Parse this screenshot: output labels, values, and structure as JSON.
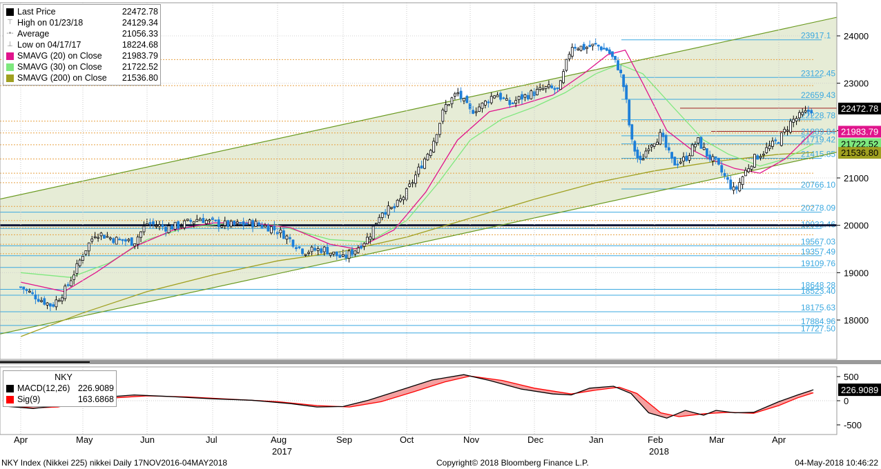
{
  "legend": {
    "items": [
      {
        "mark": "square",
        "color": "#000000",
        "label": "Last Price",
        "value": "22472.78"
      },
      {
        "mark": "glyph",
        "glyph": "⊤",
        "label": "High on 01/23/18",
        "value": "24129.34"
      },
      {
        "mark": "glyph",
        "glyph": "-•-",
        "label": "Average",
        "value": "21056.33"
      },
      {
        "mark": "glyph",
        "glyph": "⊥",
        "label": "Low on 04/17/17",
        "value": "18224.68"
      },
      {
        "mark": "square",
        "color": "#e0148c",
        "label": "SMAVG (20) on Close",
        "value": "21983.79"
      },
      {
        "mark": "square",
        "color": "#7ee87e",
        "label": "SMAVG (30) on Close",
        "value": "21722.52"
      },
      {
        "mark": "square",
        "color": "#a0a020",
        "label": "SMAVG (200) on Close",
        "value": "21536.80"
      }
    ]
  },
  "macd_legend": {
    "title": "NKY",
    "items": [
      {
        "color": "#000000",
        "label": "MACD(12,26)",
        "value": "226.9089"
      },
      {
        "color": "#ff0000",
        "label": "Sig(9)",
        "value": "163.6868"
      }
    ]
  },
  "footer": {
    "left": "NKY Index (Nikkei 225) nikkei  Daily 17NOV2016-04MAY2018",
    "center": "Copyright© 2018 Bloomberg Finance L.P.",
    "right": "04-May-2018 10:46:22"
  },
  "colors": {
    "price_up": "#000000",
    "price_down": "#1e7fd8",
    "sma20": "#e0148c",
    "sma30": "#7ee87e",
    "sma200": "#a0a020",
    "channel_fill": "#e6ecd6",
    "channel_line": "#6a9a20",
    "fib_line": "#3aa8e0",
    "orange_line": "#e8a040",
    "macd": "#000000",
    "signal": "#ff0000",
    "histogram_fill": "#f4a0a0"
  },
  "chart_data": [
    {
      "type": "candlestick",
      "title": "",
      "ylim": [
        17500,
        24400
      ],
      "y_ticks": [
        18000,
        19000,
        20000,
        21000,
        22000,
        23000,
        24000
      ],
      "x_labels": [
        "Apr",
        "May",
        "Jun",
        "Jul",
        "Aug",
        "Sep",
        "Oct",
        "Nov",
        "Dec",
        "Jan",
        "Feb",
        "Mar",
        "Apr"
      ],
      "year_labels": [
        {
          "text": "2017",
          "month_index": 4
        },
        {
          "text": "2018",
          "month_index": 10
        }
      ],
      "grid": true,
      "legend": "top-left",
      "close_series": [
        {
          "m": 0.0,
          "v": 18700
        },
        {
          "m": 0.3,
          "v": 18450
        },
        {
          "m": 0.5,
          "v": 18300
        },
        {
          "m": 0.7,
          "v": 18600
        },
        {
          "m": 0.9,
          "v": 19100
        },
        {
          "m": 1.0,
          "v": 19400
        },
        {
          "m": 1.2,
          "v": 19850
        },
        {
          "m": 1.5,
          "v": 19700
        },
        {
          "m": 1.8,
          "v": 19650
        },
        {
          "m": 2.0,
          "v": 20050
        },
        {
          "m": 2.3,
          "v": 19950
        },
        {
          "m": 2.5,
          "v": 20000
        },
        {
          "m": 2.8,
          "v": 20150
        },
        {
          "m": 3.0,
          "v": 20050
        },
        {
          "m": 3.3,
          "v": 20000
        },
        {
          "m": 3.6,
          "v": 20050
        },
        {
          "m": 3.9,
          "v": 19950
        },
        {
          "m": 4.1,
          "v": 19800
        },
        {
          "m": 4.4,
          "v": 19450
        },
        {
          "m": 4.7,
          "v": 19500
        },
        {
          "m": 5.0,
          "v": 19300
        },
        {
          "m": 5.2,
          "v": 19500
        },
        {
          "m": 5.4,
          "v": 19750
        },
        {
          "m": 5.6,
          "v": 20300
        },
        {
          "m": 5.8,
          "v": 20350
        },
        {
          "m": 6.0,
          "v": 20700
        },
        {
          "m": 6.2,
          "v": 21200
        },
        {
          "m": 6.4,
          "v": 21700
        },
        {
          "m": 6.6,
          "v": 22500
        },
        {
          "m": 6.8,
          "v": 22800
        },
        {
          "m": 7.0,
          "v": 22400
        },
        {
          "m": 7.2,
          "v": 22550
        },
        {
          "m": 7.4,
          "v": 22800
        },
        {
          "m": 7.6,
          "v": 22550
        },
        {
          "m": 7.8,
          "v": 22700
        },
        {
          "m": 8.0,
          "v": 22800
        },
        {
          "m": 8.2,
          "v": 22900
        },
        {
          "m": 8.4,
          "v": 22850
        },
        {
          "m": 8.6,
          "v": 23800
        },
        {
          "m": 8.8,
          "v": 23750
        },
        {
          "m": 9.0,
          "v": 23800
        },
        {
          "m": 9.2,
          "v": 23700
        },
        {
          "m": 9.4,
          "v": 23300
        },
        {
          "m": 9.5,
          "v": 22800
        },
        {
          "m": 9.6,
          "v": 21800
        },
        {
          "m": 9.75,
          "v": 21300
        },
        {
          "m": 9.9,
          "v": 21700
        },
        {
          "m": 10.1,
          "v": 21900
        },
        {
          "m": 10.3,
          "v": 21300
        },
        {
          "m": 10.5,
          "v": 21400
        },
        {
          "m": 10.7,
          "v": 21800
        },
        {
          "m": 10.85,
          "v": 21500
        },
        {
          "m": 11.0,
          "v": 21300
        },
        {
          "m": 11.15,
          "v": 21000
        },
        {
          "m": 11.3,
          "v": 20700
        },
        {
          "m": 11.45,
          "v": 21100
        },
        {
          "m": 11.6,
          "v": 21400
        },
        {
          "m": 11.8,
          "v": 21600
        },
        {
          "m": 12.0,
          "v": 21800
        },
        {
          "m": 12.2,
          "v": 22200
        },
        {
          "m": 12.4,
          "v": 22350
        },
        {
          "m": 12.55,
          "v": 22472.78
        }
      ],
      "sma20": [
        {
          "m": 0.0,
          "v": 18800
        },
        {
          "m": 0.7,
          "v": 18600
        },
        {
          "m": 1.2,
          "v": 19000
        },
        {
          "m": 1.8,
          "v": 19550
        },
        {
          "m": 2.4,
          "v": 19900
        },
        {
          "m": 3.0,
          "v": 20050
        },
        {
          "m": 3.6,
          "v": 20050
        },
        {
          "m": 4.2,
          "v": 19950
        },
        {
          "m": 4.8,
          "v": 19600
        },
        {
          "m": 5.2,
          "v": 19500
        },
        {
          "m": 5.8,
          "v": 19900
        },
        {
          "m": 6.3,
          "v": 20700
        },
        {
          "m": 6.8,
          "v": 21800
        },
        {
          "m": 7.3,
          "v": 22400
        },
        {
          "m": 7.8,
          "v": 22550
        },
        {
          "m": 8.3,
          "v": 22750
        },
        {
          "m": 8.8,
          "v": 23200
        },
        {
          "m": 9.2,
          "v": 23600
        },
        {
          "m": 9.5,
          "v": 23700
        },
        {
          "m": 9.8,
          "v": 23000
        },
        {
          "m": 10.2,
          "v": 22000
        },
        {
          "m": 10.6,
          "v": 21600
        },
        {
          "m": 10.9,
          "v": 21400
        },
        {
          "m": 11.3,
          "v": 21200
        },
        {
          "m": 11.7,
          "v": 21100
        },
        {
          "m": 12.1,
          "v": 21400
        },
        {
          "m": 12.55,
          "v": 21983.79
        }
      ],
      "sma30": [
        {
          "m": 0.0,
          "v": 19000
        },
        {
          "m": 0.8,
          "v": 18900
        },
        {
          "m": 1.4,
          "v": 19200
        },
        {
          "m": 2.0,
          "v": 19700
        },
        {
          "m": 2.6,
          "v": 19950
        },
        {
          "m": 3.3,
          "v": 20050
        },
        {
          "m": 4.0,
          "v": 20000
        },
        {
          "m": 4.8,
          "v": 19700
        },
        {
          "m": 5.4,
          "v": 19650
        },
        {
          "m": 6.0,
          "v": 20100
        },
        {
          "m": 6.5,
          "v": 20900
        },
        {
          "m": 7.0,
          "v": 21800
        },
        {
          "m": 7.5,
          "v": 22250
        },
        {
          "m": 8.0,
          "v": 22500
        },
        {
          "m": 8.5,
          "v": 22800
        },
        {
          "m": 9.0,
          "v": 23200
        },
        {
          "m": 9.4,
          "v": 23400
        },
        {
          "m": 9.8,
          "v": 23200
        },
        {
          "m": 10.3,
          "v": 22500
        },
        {
          "m": 10.8,
          "v": 21800
        },
        {
          "m": 11.2,
          "v": 21500
        },
        {
          "m": 11.7,
          "v": 21250
        },
        {
          "m": 12.1,
          "v": 21400
        },
        {
          "m": 12.55,
          "v": 21722.52
        }
      ],
      "sma200": [
        {
          "m": 0.0,
          "v": 17650
        },
        {
          "m": 1.0,
          "v": 18150
        },
        {
          "m": 2.0,
          "v": 18600
        },
        {
          "m": 3.0,
          "v": 18950
        },
        {
          "m": 4.0,
          "v": 19250
        },
        {
          "m": 5.0,
          "v": 19450
        },
        {
          "m": 6.0,
          "v": 19750
        },
        {
          "m": 7.0,
          "v": 20150
        },
        {
          "m": 8.0,
          "v": 20550
        },
        {
          "m": 9.0,
          "v": 20900
        },
        {
          "m": 10.0,
          "v": 21150
        },
        {
          "m": 11.0,
          "v": 21350
        },
        {
          "m": 12.0,
          "v": 21500
        },
        {
          "m": 12.55,
          "v": 21536.8
        }
      ],
      "channel": {
        "upper": [
          {
            "m": -0.35,
            "v": 20550
          },
          {
            "m": 12.95,
            "v": 24400
          }
        ],
        "lower": [
          {
            "m": -0.35,
            "v": 17700
          },
          {
            "m": 12.95,
            "v": 21550
          }
        ]
      },
      "black_level": 20000,
      "hline_price_labels": [
        {
          "text": "23917.1",
          "v": 23917.1
        },
        {
          "text": "23122.45",
          "v": 23122.45
        },
        {
          "text": "22659.43",
          "v": 22659.43
        },
        {
          "text": "22228.78",
          "v": 22228.78
        },
        {
          "text": "21889.84",
          "v": 21889.84
        },
        {
          "text": "21719.42",
          "v": 21719.42
        },
        {
          "text": "21415.85",
          "v": 21415.85
        },
        {
          "text": "20766.10",
          "v": 20766.1
        },
        {
          "text": "20278.09",
          "v": 20278.09
        },
        {
          "text": "19932.46",
          "v": 19932.46
        },
        {
          "text": "19567.03",
          "v": 19567.03
        },
        {
          "text": "19357.49",
          "v": 19357.49
        },
        {
          "text": "19109.76",
          "v": 19109.76
        },
        {
          "text": "18648.28",
          "v": 18648.28
        },
        {
          "text": "18523.40",
          "v": 18523.4
        },
        {
          "text": "18175.63",
          "v": 18175.63
        },
        {
          "text": "17884.96",
          "v": 17884.96
        },
        {
          "text": "17727.50",
          "v": 17727.5
        }
      ],
      "orange_levels": [
        23500,
        22950,
        22200,
        21950,
        21700,
        21400,
        21100,
        20900,
        20400,
        20100,
        19950,
        19800,
        19600,
        19400
      ],
      "red_levels": [
        22472.78,
        21983.79
      ],
      "right_tags": [
        {
          "text": "22472.78",
          "v": 22472.78,
          "bg": "#000000",
          "fg": "#ffffff"
        },
        {
          "text": "21983.79",
          "v": 21983.79,
          "bg": "#e0148c",
          "fg": "#ffffff"
        },
        {
          "text": "21722.52",
          "v": 21722.52,
          "bg": "#7ee87e",
          "fg": "#000000"
        },
        {
          "text": "21536.80",
          "v": 21536.8,
          "bg": "#a0a020",
          "fg": "#000000"
        }
      ]
    },
    {
      "type": "line",
      "title": "NKY",
      "ylim": [
        -600,
        650
      ],
      "y_ticks": [
        -500,
        0,
        500
      ],
      "series": [
        {
          "name": "MACD(12,26)",
          "points": [
            {
              "m": -0.2,
              "v": -120
            },
            {
              "m": 0.2,
              "v": -160
            },
            {
              "m": 0.5,
              "v": -120
            },
            {
              "m": 0.9,
              "v": 10
            },
            {
              "m": 1.3,
              "v": 70
            },
            {
              "m": 1.8,
              "v": 120
            },
            {
              "m": 2.3,
              "v": 90
            },
            {
              "m": 3.0,
              "v": 40
            },
            {
              "m": 3.6,
              "v": 10
            },
            {
              "m": 4.2,
              "v": -60
            },
            {
              "m": 4.6,
              "v": -130
            },
            {
              "m": 5.0,
              "v": -120
            },
            {
              "m": 5.4,
              "v": 10
            },
            {
              "m": 5.9,
              "v": 220
            },
            {
              "m": 6.4,
              "v": 430
            },
            {
              "m": 6.9,
              "v": 540
            },
            {
              "m": 7.3,
              "v": 420
            },
            {
              "m": 7.8,
              "v": 240
            },
            {
              "m": 8.3,
              "v": 140
            },
            {
              "m": 8.6,
              "v": 120
            },
            {
              "m": 8.9,
              "v": 260
            },
            {
              "m": 9.3,
              "v": 300
            },
            {
              "m": 9.6,
              "v": 150
            },
            {
              "m": 9.9,
              "v": -250
            },
            {
              "m": 10.2,
              "v": -360
            },
            {
              "m": 10.5,
              "v": -200
            },
            {
              "m": 10.8,
              "v": -300
            },
            {
              "m": 11.0,
              "v": -200
            },
            {
              "m": 11.3,
              "v": -250
            },
            {
              "m": 11.6,
              "v": -240
            },
            {
              "m": 12.0,
              "v": -20
            },
            {
              "m": 12.3,
              "v": 120
            },
            {
              "m": 12.55,
              "v": 226.9089
            }
          ]
        },
        {
          "name": "Sig(9)",
          "points": [
            {
              "m": -0.2,
              "v": -100
            },
            {
              "m": 0.2,
              "v": -150
            },
            {
              "m": 0.6,
              "v": -130
            },
            {
              "m": 1.0,
              "v": -20
            },
            {
              "m": 1.5,
              "v": 60
            },
            {
              "m": 2.0,
              "v": 100
            },
            {
              "m": 2.6,
              "v": 80
            },
            {
              "m": 3.3,
              "v": 30
            },
            {
              "m": 4.0,
              "v": -20
            },
            {
              "m": 4.6,
              "v": -100
            },
            {
              "m": 5.1,
              "v": -130
            },
            {
              "m": 5.6,
              "v": -20
            },
            {
              "m": 6.1,
              "v": 180
            },
            {
              "m": 6.6,
              "v": 390
            },
            {
              "m": 7.0,
              "v": 510
            },
            {
              "m": 7.5,
              "v": 420
            },
            {
              "m": 8.0,
              "v": 260
            },
            {
              "m": 8.6,
              "v": 140
            },
            {
              "m": 9.0,
              "v": 220
            },
            {
              "m": 9.4,
              "v": 280
            },
            {
              "m": 9.7,
              "v": 150
            },
            {
              "m": 10.1,
              "v": -250
            },
            {
              "m": 10.4,
              "v": -330
            },
            {
              "m": 10.8,
              "v": -270
            },
            {
              "m": 11.2,
              "v": -240
            },
            {
              "m": 11.6,
              "v": -260
            },
            {
              "m": 12.0,
              "v": -100
            },
            {
              "m": 12.3,
              "v": 60
            },
            {
              "m": 12.55,
              "v": 163.6868
            }
          ]
        }
      ],
      "right_tag": {
        "text": "226.9089",
        "v": 226.9089,
        "bg": "#000000",
        "fg": "#ffffff"
      }
    }
  ]
}
